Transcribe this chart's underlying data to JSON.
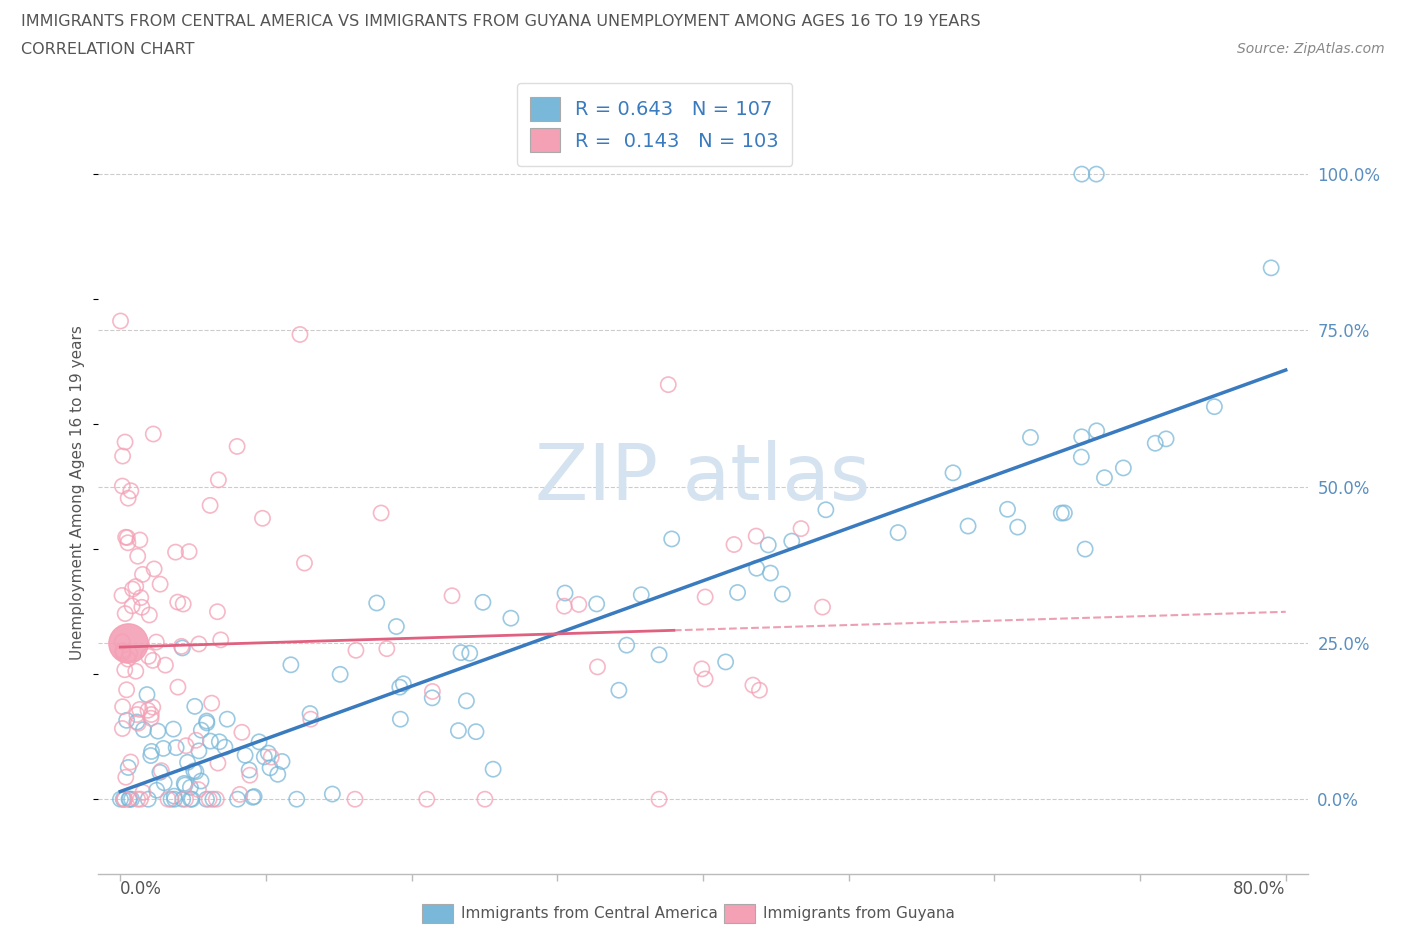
{
  "title_line1": "IMMIGRANTS FROM CENTRAL AMERICA VS IMMIGRANTS FROM GUYANA UNEMPLOYMENT AMONG AGES 16 TO 19 YEARS",
  "title_line2": "CORRELATION CHART",
  "source": "Source: ZipAtlas.com",
  "ylabel": "Unemployment Among Ages 16 to 19 years",
  "ytick_labels": [
    "0.0%",
    "25.0%",
    "50.0%",
    "75.0%",
    "100.0%"
  ],
  "ytick_positions": [
    0.0,
    0.25,
    0.5,
    0.75,
    1.0
  ],
  "blue_color": "#7ab8d9",
  "pink_color": "#f4a0b5",
  "blue_line_color": "#3a7bbf",
  "pink_line_color": "#e06080",
  "tick_label_color": "#5a8fc0",
  "legend_R1": "0.643",
  "legend_N1": "107",
  "legend_R2": "0.143",
  "legend_N2": "103",
  "legend_text_color": "#3a7bbf",
  "watermark_color": "#d5e3f0",
  "bottom_legend_label1": "Immigrants from Central America",
  "bottom_legend_label2": "Immigrants from Guyana"
}
